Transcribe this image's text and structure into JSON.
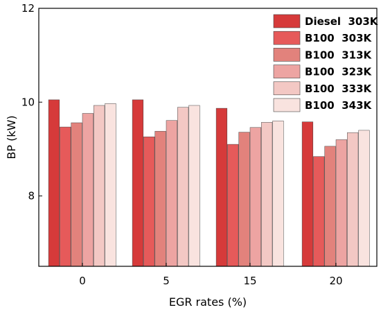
{
  "chart_data": {
    "type": "bar",
    "title": "",
    "xlabel": "EGR rates (%)",
    "ylabel": "BP  (kW)",
    "categories": [
      "0",
      "5",
      "15",
      "20"
    ],
    "ylim": [
      6.5,
      12
    ],
    "yticks": [
      "8",
      "10",
      "12"
    ],
    "grid": false,
    "legend_position": "top-right",
    "series": [
      {
        "name": "Diesel  303K",
        "color": "#d63a3a",
        "values": [
          10.05,
          10.05,
          9.87,
          9.58
        ]
      },
      {
        "name": "B100  303K",
        "color": "#e65a5a",
        "values": [
          9.47,
          9.26,
          9.1,
          8.84
        ]
      },
      {
        "name": "B100  313K",
        "color": "#e2827c",
        "values": [
          9.56,
          9.38,
          9.36,
          9.06
        ]
      },
      {
        "name": "B100  323K",
        "color": "#eda4a2",
        "values": [
          9.76,
          9.61,
          9.46,
          9.2
        ]
      },
      {
        "name": "B100  333K",
        "color": "#f3c8c4",
        "values": [
          9.93,
          9.89,
          9.57,
          9.35
        ]
      },
      {
        "name": "B100  343K",
        "color": "#f9e3df",
        "values": [
          9.97,
          9.93,
          9.6,
          9.4
        ]
      }
    ]
  }
}
